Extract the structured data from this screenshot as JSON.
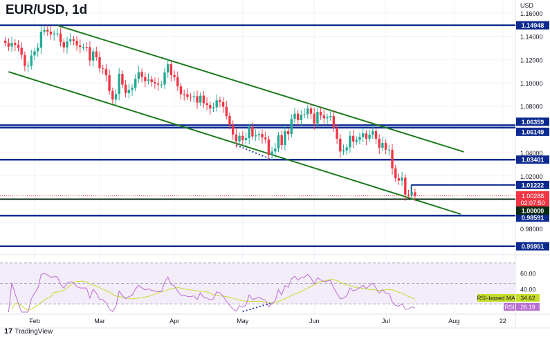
{
  "chart_data": {
    "type": "candlestick",
    "title": "EUR/USD, 1d",
    "currency_label": "USD",
    "ylim": [
      0.945,
      1.165
    ],
    "grid": true,
    "colors": {
      "up": "#22ab94",
      "down": "#f23645",
      "levels": "#0c2a8f",
      "channel": "#1e7a1e",
      "support_dots": "#2a3fb0",
      "parity": "#0b2a16",
      "rsi": "#b96fd1",
      "rsi_ma": "#c8dd2a",
      "rsi_band": "#f3ecf9"
    },
    "dates": [
      "2022-01-19",
      "2022-01-20",
      "2022-01-21",
      "2022-01-24",
      "2022-01-25",
      "2022-01-26",
      "2022-01-27",
      "2022-01-28",
      "2022-01-31",
      "2022-02-01",
      "2022-02-02",
      "2022-02-03",
      "2022-02-04",
      "2022-02-07",
      "2022-02-08",
      "2022-02-09",
      "2022-02-10",
      "2022-02-11",
      "2022-02-14",
      "2022-02-15",
      "2022-02-16",
      "2022-02-17",
      "2022-02-18",
      "2022-02-21",
      "2022-02-22",
      "2022-02-23",
      "2022-02-24",
      "2022-02-25",
      "2022-02-28",
      "2022-03-01",
      "2022-03-02",
      "2022-03-03",
      "2022-03-04",
      "2022-03-07",
      "2022-03-08",
      "2022-03-09",
      "2022-03-10",
      "2022-03-11",
      "2022-03-14",
      "2022-03-15",
      "2022-03-16",
      "2022-03-17",
      "2022-03-18",
      "2022-03-21",
      "2022-03-22",
      "2022-03-23",
      "2022-03-24",
      "2022-03-25",
      "2022-03-28",
      "2022-03-29",
      "2022-03-30",
      "2022-03-31",
      "2022-04-01",
      "2022-04-04",
      "2022-04-05",
      "2022-04-06",
      "2022-04-07",
      "2022-04-08",
      "2022-04-11",
      "2022-04-12",
      "2022-04-13",
      "2022-04-14",
      "2022-04-15",
      "2022-04-18",
      "2022-04-19",
      "2022-04-20",
      "2022-04-21",
      "2022-04-22",
      "2022-04-25",
      "2022-04-26",
      "2022-04-27",
      "2022-04-28",
      "2022-04-29",
      "2022-05-02",
      "2022-05-03",
      "2022-05-04",
      "2022-05-05",
      "2022-05-06",
      "2022-05-09",
      "2022-05-10",
      "2022-05-11",
      "2022-05-12",
      "2022-05-13",
      "2022-05-16",
      "2022-05-17",
      "2022-05-18",
      "2022-05-19",
      "2022-05-20",
      "2022-05-23",
      "2022-05-24",
      "2022-05-25",
      "2022-05-26",
      "2022-05-27",
      "2022-05-30",
      "2022-05-31",
      "2022-06-01",
      "2022-06-02",
      "2022-06-03",
      "2022-06-06",
      "2022-06-07",
      "2022-06-08",
      "2022-06-09",
      "2022-06-10",
      "2022-06-13",
      "2022-06-14",
      "2022-06-15",
      "2022-06-16",
      "2022-06-17",
      "2022-06-20",
      "2022-06-21",
      "2022-06-22",
      "2022-06-23",
      "2022-06-24",
      "2022-06-27",
      "2022-06-28",
      "2022-06-29",
      "2022-06-30",
      "2022-07-01",
      "2022-07-04",
      "2022-07-05",
      "2022-07-06",
      "2022-07-07",
      "2022-07-08",
      "2022-07-11",
      "2022-07-12",
      "2022-07-13",
      "2022-07-14"
    ],
    "close": [
      1.1343,
      1.1311,
      1.1344,
      1.1326,
      1.1301,
      1.124,
      1.1145,
      1.1146,
      1.1235,
      1.1271,
      1.1303,
      1.144,
      1.1456,
      1.1441,
      1.1417,
      1.1424,
      1.1424,
      1.1349,
      1.1305,
      1.1356,
      1.1375,
      1.1362,
      1.1322,
      1.1308,
      1.1308,
      1.1307,
      1.1192,
      1.127,
      1.122,
      1.1125,
      1.112,
      1.1065,
      1.093,
      1.0856,
      1.0904,
      1.1077,
      1.0985,
      1.0912,
      1.094,
      1.0957,
      1.1035,
      1.1093,
      1.105,
      1.1016,
      1.103,
      1.1006,
      1.0995,
      1.0985,
      1.0985,
      1.109,
      1.116,
      1.1066,
      1.1048,
      1.097,
      1.0903,
      1.0902,
      1.088,
      1.0878,
      1.0885,
      1.083,
      1.089,
      1.0825,
      1.081,
      1.078,
      1.079,
      1.085,
      1.0835,
      1.0795,
      1.0715,
      1.0637,
      1.0556,
      1.0497,
      1.0545,
      1.0507,
      1.0525,
      1.062,
      1.054,
      1.055,
      1.056,
      1.053,
      1.0515,
      1.038,
      1.041,
      1.0435,
      1.055,
      1.0465,
      1.0585,
      1.056,
      1.069,
      1.0735,
      1.068,
      1.0725,
      1.073,
      1.078,
      1.0735,
      1.065,
      1.075,
      1.072,
      1.0695,
      1.0705,
      1.0715,
      1.0615,
      1.052,
      1.041,
      1.042,
      1.0445,
      1.0545,
      1.0495,
      1.051,
      1.0535,
      1.0565,
      1.052,
      1.0555,
      1.0585,
      1.052,
      1.0443,
      1.0483,
      1.0425,
      1.0425,
      1.0265,
      1.018,
      1.016,
      1.0185,
      1.004,
      1.0037,
      1.006,
      1.00288
    ],
    "x_ticks": [
      {
        "label": "Feb",
        "date": "2022-02-01"
      },
      {
        "label": "Mar",
        "date": "2022-03-01"
      },
      {
        "label": "Apr",
        "date": "2022-04-01"
      },
      {
        "label": "May",
        "date": "2022-05-02"
      },
      {
        "label": "Jun",
        "date": "2022-06-01"
      },
      {
        "label": "Jul",
        "date": "2022-07-01"
      },
      {
        "label": "Aug",
        "date": "2022-08-01"
      },
      {
        "label": "22",
        "date": "2022-08-22"
      }
    ],
    "y_ticks": [
      "1.16000",
      "1.14000",
      "1.12000",
      "1.10000",
      "1.08000",
      "1.04000",
      "1.02000",
      "0.98000"
    ],
    "horizontal_levels": [
      {
        "price": 1.14948,
        "label": "1.14948"
      },
      {
        "price": 1.06359,
        "label": "1.06359"
      },
      {
        "price": 1.06149,
        "label": "1.06149"
      },
      {
        "price": 1.03401,
        "label": "1.03401"
      },
      {
        "price": 0.98591,
        "label": "0.98591"
      },
      {
        "price": 0.95951,
        "label": "0.95951"
      }
    ],
    "short_level": {
      "price": 1.01222,
      "label": "1.01222",
      "from_date": "2022-07-12"
    },
    "parity_level": {
      "price": 1.0,
      "label": "1.00000"
    },
    "last_price": {
      "price": 1.00288,
      "label": "1.00288",
      "countdown": "02:07:50"
    },
    "trendlines": [
      {
        "from": [
          "2022-02-10",
          1.1494
        ],
        "to": [
          "2022-08-04",
          1.0407
        ]
      },
      {
        "from": [
          "2022-01-20",
          1.1095
        ],
        "to": [
          "2022-08-03",
          0.9872
        ]
      }
    ],
    "support_dotted": {
      "from": [
        "2022-04-28",
        1.0465
      ],
      "to": [
        "2022-05-13",
        1.034
      ]
    },
    "rsi": {
      "period": 14,
      "ylim": [
        22,
        76
      ],
      "y_ticks": [
        "60.00",
        "40.00"
      ],
      "bands": [
        70,
        50,
        30
      ],
      "ma_label": "RSI-based MA",
      "ma_value": "34.62",
      "rsi_label": "RSI",
      "rsi_value": "26.19",
      "divergence_dotted": {
        "from": [
          "2022-05-02",
          22.5
        ],
        "to": [
          "2022-05-13",
          31
        ]
      }
    }
  },
  "footer": {
    "brand": "TradingView"
  }
}
